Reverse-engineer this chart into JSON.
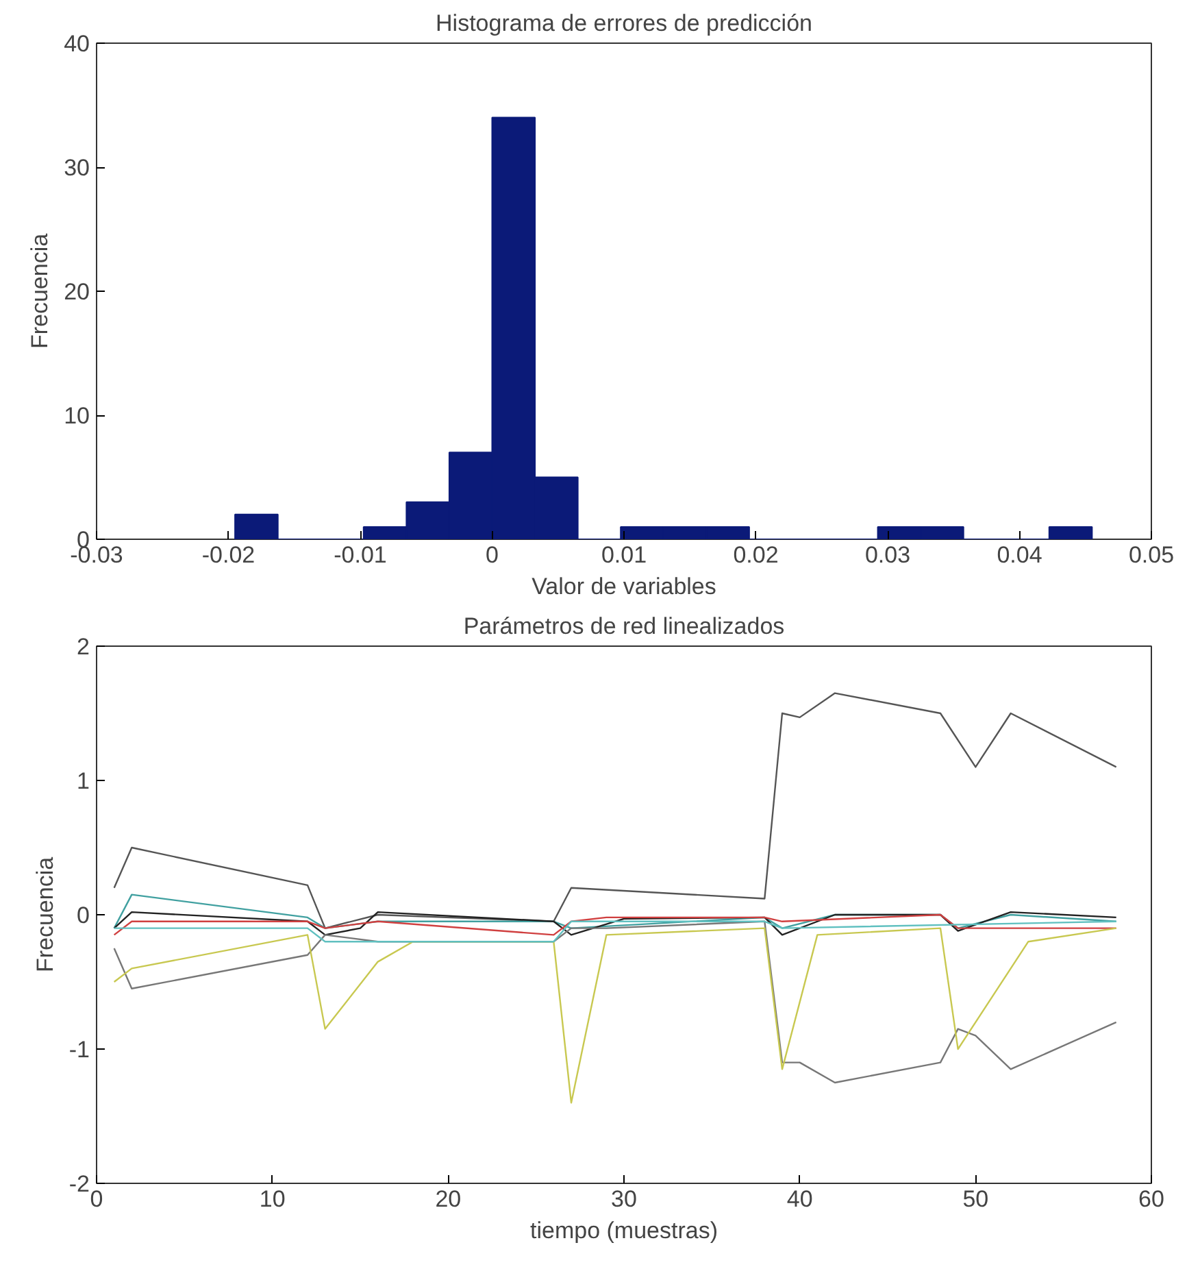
{
  "chart_data": [
    {
      "type": "histogram",
      "title": "Histograma de errores de predicción",
      "xlabel": "Valor de variables",
      "ylabel": "Frecuencia",
      "color": "#0b1a78",
      "bins": [
        -0.0195,
        -0.01625,
        -0.013,
        -0.00975,
        -0.0065,
        -0.00325,
        0,
        0.00325,
        0.0065,
        0.00975,
        0.013,
        0.01625,
        0.0195,
        0.02275,
        0.026,
        0.02925,
        0.0325,
        0.03575,
        0.039,
        0.04225,
        0.0455
      ],
      "values": [
        2,
        0,
        0,
        1,
        3,
        7,
        34,
        5,
        0,
        1,
        1,
        1,
        0,
        0,
        0,
        1,
        1,
        0,
        0,
        1
      ],
      "xlim": [
        -0.03,
        0.05
      ],
      "xticks": [
        -0.03,
        -0.02,
        -0.01,
        0,
        0.01,
        0.02,
        0.03,
        0.04,
        0.05
      ],
      "ylim": [
        0,
        40
      ],
      "yticks": [
        0,
        10,
        20,
        30,
        40
      ],
      "grid": false
    },
    {
      "type": "line",
      "title": "Parámetros de red linealizados",
      "xlabel": "tiempo (muestras)",
      "ylabel": "Frecuencia",
      "xlim": [
        0,
        60
      ],
      "xticks": [
        0,
        10,
        20,
        30,
        40,
        50,
        60
      ],
      "ylim": [
        -2,
        2
      ],
      "yticks": [
        -2,
        -1,
        0,
        1,
        2
      ],
      "grid": false,
      "line_style": "solid",
      "marker": "none",
      "series": [
        {
          "color": "#555555",
          "x": [
            1,
            2,
            12,
            13,
            16,
            26,
            27,
            38,
            39,
            40,
            42,
            48,
            50,
            52,
            58
          ],
          "values": [
            0.2,
            0.5,
            0.22,
            -0.1,
            0.0,
            -0.05,
            0.2,
            0.12,
            1.5,
            1.47,
            1.65,
            1.5,
            1.1,
            1.5,
            1.1
          ]
        },
        {
          "color": "#40a0a0",
          "x": [
            1,
            2,
            12,
            13,
            16,
            26,
            27,
            38,
            39,
            42,
            48,
            49,
            52,
            58
          ],
          "values": [
            -0.1,
            0.15,
            -0.02,
            -0.1,
            -0.05,
            -0.05,
            -0.1,
            -0.02,
            -0.1,
            0.0,
            0.0,
            -0.1,
            0.0,
            -0.05
          ]
        },
        {
          "color": "#222222",
          "x": [
            1,
            2,
            12,
            13,
            15,
            16,
            26,
            27,
            30,
            38,
            39,
            42,
            48,
            49,
            52,
            58
          ],
          "values": [
            -0.1,
            0.02,
            -0.05,
            -0.15,
            -0.1,
            0.02,
            -0.05,
            -0.15,
            -0.03,
            -0.02,
            -0.15,
            0.0,
            0.0,
            -0.12,
            0.02,
            -0.02
          ]
        },
        {
          "color": "#d04040",
          "x": [
            1,
            2,
            12,
            13,
            16,
            26,
            27,
            29,
            38,
            39,
            48,
            49,
            58
          ],
          "values": [
            -0.15,
            -0.05,
            -0.05,
            -0.1,
            -0.05,
            -0.15,
            -0.05,
            -0.02,
            -0.02,
            -0.05,
            0.0,
            -0.1,
            -0.1
          ]
        },
        {
          "color": "#777777",
          "x": [
            1,
            2,
            12,
            13,
            16,
            26,
            27,
            29,
            38,
            39,
            40,
            42,
            48,
            49,
            50,
            52,
            58
          ],
          "values": [
            -0.25,
            -0.55,
            -0.3,
            -0.15,
            -0.2,
            -0.2,
            -0.1,
            -0.1,
            -0.05,
            -1.1,
            -1.1,
            -1.25,
            -1.1,
            -0.85,
            -0.9,
            -1.15,
            -0.8
          ]
        },
        {
          "color": "#c8c850",
          "x": [
            1,
            2,
            12,
            13,
            16,
            18,
            26,
            27,
            29,
            38,
            39,
            41,
            48,
            49,
            50,
            53,
            58
          ],
          "values": [
            -0.5,
            -0.4,
            -0.15,
            -0.85,
            -0.35,
            -0.2,
            -0.2,
            -1.4,
            -0.15,
            -0.1,
            -1.15,
            -0.15,
            -0.1,
            -1.0,
            -0.8,
            -0.2,
            -0.1
          ]
        },
        {
          "color": "#60c0c0",
          "x": [
            1,
            2,
            12,
            13,
            16,
            26,
            27,
            38,
            39,
            58
          ],
          "values": [
            -0.1,
            -0.1,
            -0.1,
            -0.2,
            -0.2,
            -0.2,
            -0.05,
            -0.05,
            -0.1,
            -0.05
          ]
        }
      ]
    }
  ]
}
